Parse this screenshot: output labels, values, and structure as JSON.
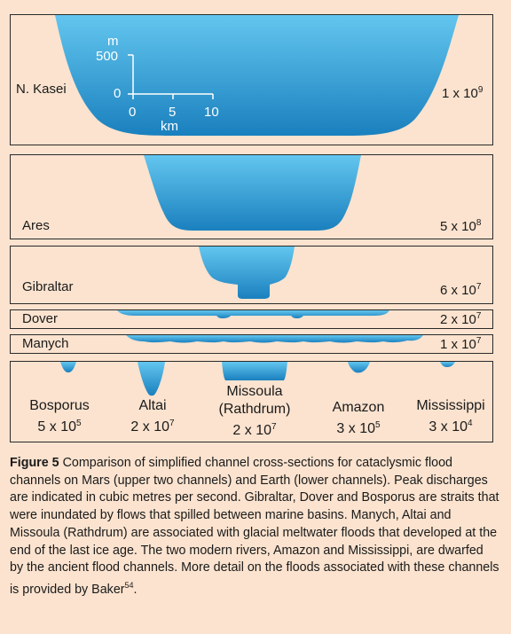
{
  "panels": {
    "kasei": {
      "name": "N. Kasei",
      "coef": "1 x 10",
      "exp": "9"
    },
    "ares": {
      "name": "Ares",
      "coef": "5 x 10",
      "exp": "8"
    },
    "gibraltar": {
      "name": "Gibraltar",
      "coef": "6 x 10",
      "exp": "7"
    },
    "dover": {
      "name": "Dover",
      "coef": "2 x 10",
      "exp": "7"
    },
    "manych": {
      "name": "Manych",
      "coef": "1 x 10",
      "exp": "7"
    }
  },
  "scale": {
    "unit_m": "m",
    "y_top": "500",
    "y_zero": "0",
    "x0": "0",
    "x5": "5",
    "x10": "10",
    "unit_km": "km"
  },
  "earth": [
    {
      "name": "Bosporus",
      "coef": "5 x 10",
      "exp": "5"
    },
    {
      "name": "Altai",
      "coef": "2 x 10",
      "exp": "7"
    },
    {
      "name": "Missoula",
      "sub": "(Rathdrum)",
      "coef": "2 x 10",
      "exp": "7"
    },
    {
      "name": "Amazon",
      "coef": "3 x 10",
      "exp": "5"
    },
    {
      "name": "Mississippi",
      "coef": "3 x 10",
      "exp": "4"
    }
  ],
  "caption": {
    "label": "Figure 5",
    "text": " Comparison of simplified channel cross-sections for cataclysmic flood channels on Mars (upper two channels) and Earth (lower channels). Peak discharges are indicated in cubic metres per second. Gibraltar, Dover and Bosporus are straits that were inundated by flows that spilled between marine basins. Manych, Altai and Missoula (Rathdrum) are associated with glacial meltwater floods that developed at the end of the last ice age. The two modern rivers, Amazon and Mississippi, are dwarfed by the ancient flood channels. More detail on the floods associated with these channels is provided by Baker",
    "ref": "54",
    "end": "."
  },
  "colors": {
    "background": "#fbe3cf",
    "water_top": "#5fc3ee",
    "water_bottom": "#1b82c0",
    "frame": "#2a2a2a"
  }
}
